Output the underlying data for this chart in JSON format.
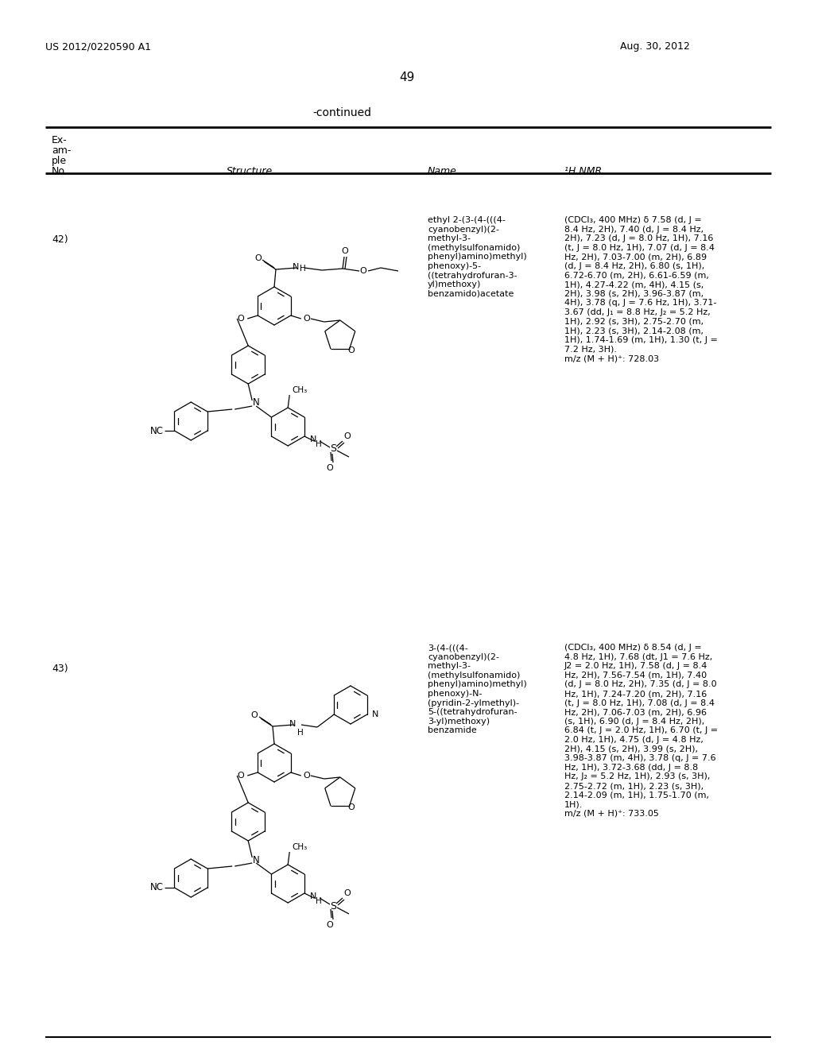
{
  "page_number": "49",
  "patent_number": "US 2012/0220590 A1",
  "patent_date": "Aug. 30, 2012",
  "continued_label": "-continued",
  "background_color": "#ffffff",
  "example_42_number": "42)",
  "example_42_name": "ethyl 2-(3-(4-(((4-\ncyanobenzyl)(2-\nmethyl-3-\n(methylsulfonamido)\nphenyl)amino)methyl)\nphenoxy)-5-\n((tetrahydrofuran-3-\nyl)methoxy)\nbenzamido)acetate",
  "example_42_nmr": "(CDCl₃, 400 MHz) δ 7.58 (d, J =\n8.4 Hz, 2H), 7.40 (d, J = 8.4 Hz,\n2H), 7.23 (d, J = 8.0 Hz, 1H), 7.16\n(t, J = 8.0 Hz, 1H), 7.07 (d, J = 8.4\nHz, 2H), 7.03-7.00 (m, 2H), 6.89\n(d, J = 8.4 Hz, 2H), 6.80 (s, 1H),\n6.72-6.70 (m, 2H), 6.61-6.59 (m,\n1H), 4.27-4.22 (m, 4H), 4.15 (s,\n2H), 3.98 (s, 2H), 3.96-3.87 (m,\n4H), 3.78 (q, J = 7.6 Hz, 1H), 3.71-\n3.67 (dd, J₁ = 8.8 Hz, J₂ = 5.2 Hz,\n1H), 2.92 (s, 3H), 2.75-2.70 (m,\n1H), 2.23 (s, 3H), 2.14-2.08 (m,\n1H), 1.74-1.69 (m, 1H), 1.30 (t, J =\n7.2 Hz, 3H).\nm/z (M + H)⁺: 728.03",
  "example_43_number": "43)",
  "example_43_name": "3-(4-(((4-\ncyanobenzyl)(2-\nmethyl-3-\n(methylsulfonamido)\nphenyl)amino)methyl)\nphenoxy)-N-\n(pyridin-2-ylmethyl)-\n5-((tetrahydrofuran-\n3-yl)methoxy)\nbenzamide",
  "example_43_nmr": "(CDCl₃, 400 MHz) δ 8.54 (d, J =\n4.8 Hz, 1H), 7.68 (dt, J1 = 7.6 Hz,\nJ2 = 2.0 Hz, 1H), 7.58 (d, J = 8.4\nHz, 2H), 7.56-7.54 (m, 1H), 7.40\n(d, J = 8.0 Hz, 2H), 7.35 (d, J = 8.0\nHz, 1H), 7.24-7.20 (m, 2H), 7.16\n(t, J = 8.0 Hz, 1H), 7.08 (d, J = 8.4\nHz, 2H), 7.06-7.03 (m, 2H), 6.96\n(s, 1H), 6.90 (d, J = 8.4 Hz, 2H),\n6.84 (t, J = 2.0 Hz, 1H), 6.70 (t, J =\n2.0 Hz, 1H), 4.75 (d, J = 4.8 Hz,\n2H), 4.15 (s, 2H), 3.99 (s, 2H),\n3.98-3.87 (m, 4H), 3.78 (q, J = 7.6\nHz, 1H), 3.72-3.68 (dd, J = 8.8\nHz, J₂ = 5.2 Hz, 1H), 2.93 (s, 3H),\n2.75-2.72 (m, 1H), 2.23 (s, 3H),\n2.14-2.09 (m, 1H), 1.75-1.70 (m,\n1H).\nm/z (M + H)⁺: 733.05"
}
